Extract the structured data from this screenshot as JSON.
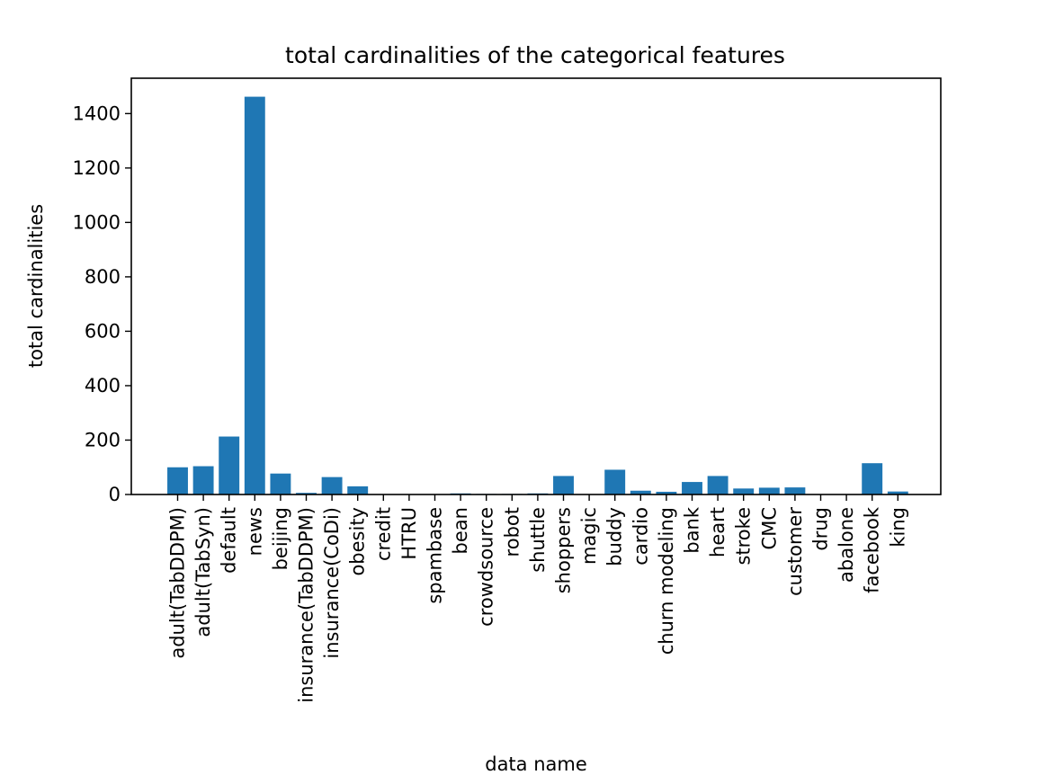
{
  "chart_data": {
    "type": "bar",
    "title": "total cardinalities of the categorical features",
    "xlabel": "data name",
    "ylabel": "total cardinalities",
    "ylim": [
      0,
      1530
    ],
    "yticks": [
      0,
      200,
      400,
      600,
      800,
      1000,
      1200,
      1400
    ],
    "bar_color": "#1f77b4",
    "grid": false,
    "categories": [
      "adult(TabDDPM)",
      "adult(TabSyn)",
      "default",
      "news",
      "beijing",
      "insurance(TabDDPM)",
      "insurance(CoDi)",
      "obesity",
      "credit",
      "HTRU",
      "spambase",
      "bean",
      "crowdsource",
      "robot",
      "shuttle",
      "shoppers",
      "magic",
      "buddy",
      "cardio",
      "churn modeling",
      "bank",
      "heart",
      "stroke",
      "CMC",
      "customer",
      "drug",
      "abalone",
      "facebook",
      "king"
    ],
    "values": [
      100,
      104,
      213,
      1462,
      77,
      6,
      64,
      30,
      0,
      0,
      0,
      4,
      2,
      2,
      4,
      68,
      0,
      91,
      14,
      10,
      46,
      68,
      22,
      25,
      26,
      0,
      0,
      115,
      11
    ]
  }
}
